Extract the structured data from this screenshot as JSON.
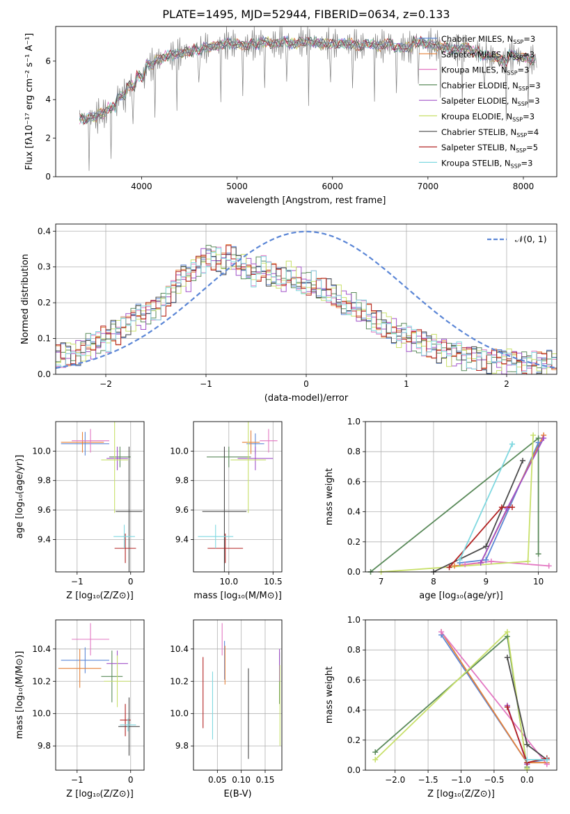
{
  "title": "PLATE=1495, MJD=52944, FIBERID=0634, z=0.133",
  "colors": [
    "#5b86d6",
    "#e6823a",
    "#e377c2",
    "#5a8a5a",
    "#a050c8",
    "#c8e06a",
    "#4a4a4a",
    "#b22222",
    "#7fd8e0"
  ],
  "legend": [
    {
      "name": "Chabrier MILES",
      "n": "3"
    },
    {
      "name": "Salpeter MILES",
      "n": "3"
    },
    {
      "name": "Kroupa MILES",
      "n": "3"
    },
    {
      "name": "Chabrier ELODIE",
      "n": "3"
    },
    {
      "name": "Salpeter ELODIE",
      "n": "3"
    },
    {
      "name": "Kroupa ELODIE",
      "n": "3"
    },
    {
      "name": "Chabrier STELIB",
      "n": "4"
    },
    {
      "name": "Salpeter STELIB",
      "n": "5"
    },
    {
      "name": "Kroupa STELIB",
      "n": "3"
    }
  ],
  "chart_data": [
    {
      "id": "spectrum",
      "type": "line",
      "xlabel": "wavelength [Angstrom, rest frame]",
      "ylabel": "Flux [fλ10⁻¹⁷ erg cm⁻² s⁻¹ A⁻¹]",
      "xlim": [
        3100,
        8350
      ],
      "ylim": [
        0,
        7.8
      ],
      "xticks": [
        4000,
        5000,
        6000,
        7000,
        8000
      ],
      "yticks": [
        0,
        2,
        4,
        6
      ],
      "data_x": [
        3350,
        3450,
        3550,
        3650,
        3750,
        3850,
        3950,
        4050,
        4150,
        4250,
        4350,
        4450,
        4550,
        4650,
        4750,
        4850,
        4950,
        5050,
        5150,
        5250,
        5350,
        5450,
        5550,
        5650,
        5750,
        5850,
        5950,
        6050,
        6150,
        6250,
        6350,
        6450,
        6550,
        6650,
        6750,
        6850,
        6950,
        7050,
        7150,
        7250,
        7350,
        7450,
        7550,
        7650,
        7750,
        7850,
        7950,
        8050
      ],
      "data_y": [
        3.0,
        3.1,
        3.3,
        3.6,
        4.2,
        4.7,
        5.2,
        5.8,
        6.1,
        6.3,
        6.4,
        6.5,
        6.6,
        6.7,
        6.8,
        6.9,
        6.9,
        6.8,
        6.9,
        7.0,
        6.9,
        7.0,
        6.9,
        7.0,
        7.0,
        6.9,
        6.9,
        6.9,
        6.9,
        6.8,
        6.9,
        6.8,
        6.9,
        6.7,
        6.7,
        7.0,
        6.9,
        6.8,
        6.7,
        6.6,
        6.7,
        6.5,
        6.3,
        6.2,
        6.0,
        6.3,
        6.2,
        6.1
      ],
      "note_lines": "rest-frame spectrum with 9 SSP model fits"
    },
    {
      "id": "residuals",
      "type": "histogram",
      "xlabel": "(data-model)/error",
      "ylabel": "Normed distribution",
      "xlim": [
        -2.5,
        2.5
      ],
      "ylim": [
        0,
        0.42
      ],
      "xticks": [
        -2,
        -1,
        0,
        1,
        2
      ],
      "yticks": [
        0.0,
        0.1,
        0.2,
        0.3,
        0.4
      ],
      "gaussian_label": "𝒩(0, 1)",
      "bin_width": 0.1,
      "values": [
        0.05,
        0.05,
        0.06,
        0.05,
        0.06,
        0.07,
        0.08,
        0.08,
        0.09,
        0.1,
        0.1,
        0.12,
        0.12,
        0.14,
        0.14,
        0.16,
        0.17,
        0.16,
        0.18,
        0.18,
        0.19,
        0.2,
        0.22,
        0.24,
        0.26,
        0.28,
        0.27,
        0.29,
        0.31,
        0.32,
        0.33,
        0.33,
        0.32,
        0.31,
        0.33,
        0.32,
        0.31,
        0.3,
        0.29,
        0.28,
        0.29,
        0.3,
        0.28,
        0.27,
        0.27,
        0.26,
        0.28,
        0.27,
        0.26,
        0.25,
        0.25,
        0.25,
        0.24,
        0.23,
        0.23,
        0.22,
        0.21,
        0.2,
        0.19,
        0.19,
        0.18,
        0.17,
        0.16,
        0.15,
        0.14,
        0.14,
        0.13,
        0.12,
        0.11,
        0.11,
        0.1,
        0.1,
        0.09,
        0.09,
        0.08,
        0.08,
        0.07,
        0.07,
        0.06,
        0.06,
        0.06,
        0.05,
        0.05,
        0.05,
        0.05,
        0.04,
        0.04,
        0.04,
        0.04,
        0.04,
        0.04,
        0.04,
        0.03,
        0.03,
        0.03,
        0.03,
        0.03,
        0.03,
        0.03,
        0.03
      ]
    },
    {
      "id": "age-vs-Z",
      "type": "scatter",
      "xlabel": "Z [log₁₀(Z/Z⊙)]",
      "ylabel": "age  [log₁₀(age/yr)]",
      "xlim": [
        -1.4,
        0.25
      ],
      "ylim": [
        9.18,
        10.2
      ],
      "xticks": [
        -1,
        0
      ],
      "yticks": [
        9.4,
        9.6,
        9.8,
        10.0
      ],
      "points": [
        {
          "x": -0.85,
          "y": 10.05,
          "xe": 0.45,
          "ye": 0.08,
          "c": 0
        },
        {
          "x": -0.9,
          "y": 10.06,
          "xe": 0.4,
          "ye": 0.07,
          "c": 1
        },
        {
          "x": -0.75,
          "y": 10.07,
          "xe": 0.35,
          "ye": 0.08,
          "c": 2
        },
        {
          "x": -0.2,
          "y": 9.96,
          "xe": 0.2,
          "ye": 0.07,
          "c": 3
        },
        {
          "x": -0.25,
          "y": 9.95,
          "xe": 0.2,
          "ye": 0.08,
          "c": 4
        },
        {
          "x": -0.3,
          "y": 9.94,
          "xe": 0.25,
          "ye": 0.36,
          "c": 5
        },
        {
          "x": -0.03,
          "y": 9.59,
          "xe": 0.25,
          "ye": 0.44,
          "c": 6
        },
        {
          "x": -0.1,
          "y": 9.34,
          "xe": 0.2,
          "ye": 0.1,
          "c": 7
        },
        {
          "x": -0.12,
          "y": 9.42,
          "xe": 0.2,
          "ye": 0.08,
          "c": 8
        }
      ]
    },
    {
      "id": "age-vs-mass",
      "type": "scatter",
      "xlabel": "mass [log₁₀(M/M⊙)]",
      "ylabel": "",
      "xlim": [
        9.6,
        10.6
      ],
      "ylim": [
        9.18,
        10.2
      ],
      "xticks": [
        10.0,
        10.5
      ],
      "yticks": [
        9.4,
        9.6,
        9.8,
        10.0
      ],
      "points": [
        {
          "x": 10.3,
          "y": 10.05,
          "xe": 0.1,
          "ye": 0.07,
          "c": 0
        },
        {
          "x": 10.25,
          "y": 10.06,
          "xe": 0.1,
          "ye": 0.08,
          "c": 1
        },
        {
          "x": 10.45,
          "y": 10.07,
          "xe": 0.1,
          "ye": 0.08,
          "c": 2
        },
        {
          "x": 10.0,
          "y": 9.96,
          "xe": 0.25,
          "ye": 0.07,
          "c": 3
        },
        {
          "x": 10.3,
          "y": 9.95,
          "xe": 0.2,
          "ye": 0.08,
          "c": 4
        },
        {
          "x": 10.22,
          "y": 9.94,
          "xe": 0.2,
          "ye": 0.36,
          "c": 5
        },
        {
          "x": 9.95,
          "y": 9.59,
          "xe": 0.25,
          "ye": 0.44,
          "c": 6
        },
        {
          "x": 9.96,
          "y": 9.34,
          "xe": 0.2,
          "ye": 0.1,
          "c": 7
        },
        {
          "x": 9.85,
          "y": 9.42,
          "xe": 0.2,
          "ye": 0.08,
          "c": 8
        }
      ]
    },
    {
      "id": "massweight-vs-age",
      "type": "line",
      "xlabel": "age  [log₁₀(age/yr)]",
      "ylabel": "mass weight",
      "xlim": [
        6.7,
        10.35
      ],
      "ylim": [
        0,
        1.0
      ],
      "xticks": [
        7,
        8,
        9,
        10
      ],
      "yticks": [
        0.0,
        0.2,
        0.4,
        0.6,
        0.8,
        1.0
      ],
      "series": [
        {
          "c": 0,
          "x": [
            8.5,
            9.0,
            10.0
          ],
          "y": [
            0.06,
            0.08,
            0.86
          ]
        },
        {
          "c": 1,
          "x": [
            8.4,
            8.9,
            10.1
          ],
          "y": [
            0.04,
            0.06,
            0.91
          ]
        },
        {
          "c": 2,
          "x": [
            8.6,
            9.1,
            10.2
          ],
          "y": [
            0.05,
            0.07,
            0.04
          ]
        },
        {
          "c": 3,
          "x": [
            6.8,
            10.0,
            10.0
          ],
          "y": [
            0.0,
            0.89,
            0.12
          ]
        },
        {
          "c": 4,
          "x": [
            8.9,
            9.4,
            10.1
          ],
          "y": [
            0.06,
            0.42,
            0.89
          ]
        },
        {
          "c": 5,
          "x": [
            7.0,
            9.8,
            9.9
          ],
          "y": [
            0.0,
            0.07,
            0.91
          ]
        },
        {
          "c": 6,
          "x": [
            8.0,
            9.0,
            9.7
          ],
          "y": [
            0.0,
            0.17,
            0.74
          ]
        },
        {
          "c": 7,
          "x": [
            8.3,
            9.3,
            9.5
          ],
          "y": [
            0.03,
            0.43,
            0.43
          ]
        },
        {
          "c": 8,
          "x": [
            8.5,
            9.5,
            9.5
          ],
          "y": [
            0.08,
            0.85,
            0.85
          ]
        }
      ]
    },
    {
      "id": "mass-vs-Z",
      "type": "scatter",
      "xlabel": "Z [log₁₀(Z/Z⊙)]",
      "ylabel": "mass [log₁₀(M/M⊙)]",
      "xlim": [
        -1.4,
        0.25
      ],
      "ylim": [
        9.65,
        10.58
      ],
      "xticks": [
        -1,
        0
      ],
      "yticks": [
        9.8,
        10.0,
        10.2,
        10.4
      ],
      "points": [
        {
          "x": -0.85,
          "y": 10.33,
          "xe": 0.45,
          "ye": 0.08,
          "c": 0
        },
        {
          "x": -0.95,
          "y": 10.28,
          "xe": 0.4,
          "ye": 0.12,
          "c": 1
        },
        {
          "x": -0.75,
          "y": 10.46,
          "xe": 0.35,
          "ye": 0.1,
          "c": 2
        },
        {
          "x": -0.35,
          "y": 10.23,
          "xe": 0.2,
          "ye": 0.16,
          "c": 3
        },
        {
          "x": -0.25,
          "y": 10.31,
          "xe": 0.2,
          "ye": 0.08,
          "c": 4
        },
        {
          "x": -0.25,
          "y": 10.2,
          "xe": 0.25,
          "ye": 0.16,
          "c": 5
        },
        {
          "x": -0.03,
          "y": 9.92,
          "xe": 0.2,
          "ye": 0.18,
          "c": 6
        },
        {
          "x": -0.1,
          "y": 9.96,
          "xe": 0.1,
          "ye": 0.1,
          "c": 7
        },
        {
          "x": -0.05,
          "y": 9.93,
          "xe": 0.15,
          "ye": 0.04,
          "c": 8
        }
      ]
    },
    {
      "id": "mass-vs-EBV",
      "type": "scatter",
      "xlabel": "E(B-V)",
      "ylabel": "",
      "xlim": [
        0.0,
        0.185
      ],
      "ylim": [
        9.65,
        10.58
      ],
      "xticks": [
        0.05,
        0.1,
        0.15
      ],
      "yticks": [
        9.8,
        10.0,
        10.2,
        10.4
      ],
      "points": [
        {
          "x": 0.065,
          "y": 10.33,
          "xe": 0,
          "ye": 0.12,
          "c": 0
        },
        {
          "x": 0.066,
          "y": 10.3,
          "xe": 0,
          "ye": 0.12,
          "c": 1
        },
        {
          "x": 0.06,
          "y": 10.46,
          "xe": 0,
          "ye": 0.1,
          "c": 2
        },
        {
          "x": 0.18,
          "y": 10.22,
          "xe": 0,
          "ye": 0.16,
          "c": 3
        },
        {
          "x": 0.18,
          "y": 10.3,
          "xe": 0,
          "ye": 0.1,
          "c": 4
        },
        {
          "x": 0.181,
          "y": 10.05,
          "xe": 0,
          "ye": 0.25,
          "c": 5
        },
        {
          "x": 0.115,
          "y": 10.0,
          "xe": 0,
          "ye": 0.28,
          "c": 6
        },
        {
          "x": 0.02,
          "y": 10.13,
          "xe": 0,
          "ye": 0.22,
          "c": 7
        },
        {
          "x": 0.04,
          "y": 10.05,
          "xe": 0,
          "ye": 0.21,
          "c": 8
        }
      ]
    },
    {
      "id": "massweight-vs-Z",
      "type": "line",
      "xlabel": "Z [log₁₀(Z/Z⊙)]",
      "ylabel": "mass weight",
      "xlim": [
        -2.45,
        0.45
      ],
      "ylim": [
        0,
        1.0
      ],
      "xticks": [
        -2.0,
        -1.5,
        -1.0,
        -0.5,
        0.0
      ],
      "yticks": [
        0.0,
        0.2,
        0.4,
        0.6,
        0.8,
        1.0
      ],
      "series": [
        {
          "c": 0,
          "x": [
            -1.3,
            0.0,
            0.3
          ],
          "y": [
            0.9,
            0.05,
            0.07
          ]
        },
        {
          "c": 1,
          "x": [
            -1.3,
            0.0,
            0.3
          ],
          "y": [
            0.92,
            0.05,
            0.05
          ]
        },
        {
          "c": 2,
          "x": [
            -1.3,
            0.3,
            0.3
          ],
          "y": [
            0.92,
            0.04,
            0.04
          ]
        },
        {
          "c": 3,
          "x": [
            -2.3,
            -0.3,
            0.0
          ],
          "y": [
            0.12,
            0.89,
            0.02
          ]
        },
        {
          "c": 4,
          "x": [
            -0.3,
            0.0,
            0.0
          ],
          "y": [
            0.43,
            0.04,
            0.04
          ]
        },
        {
          "c": 5,
          "x": [
            -2.3,
            -0.3,
            0.0
          ],
          "y": [
            0.07,
            0.92,
            0.01
          ]
        },
        {
          "c": 6,
          "x": [
            -0.3,
            0.0,
            0.3
          ],
          "y": [
            0.75,
            0.17,
            0.07
          ]
        },
        {
          "c": 7,
          "x": [
            -0.3,
            0.0,
            0.3
          ],
          "y": [
            0.42,
            0.05,
            0.08
          ]
        },
        {
          "c": 8,
          "x": [
            0.0,
            0.3,
            0.3
          ],
          "y": [
            0.07,
            0.07,
            0.07
          ]
        }
      ]
    }
  ]
}
